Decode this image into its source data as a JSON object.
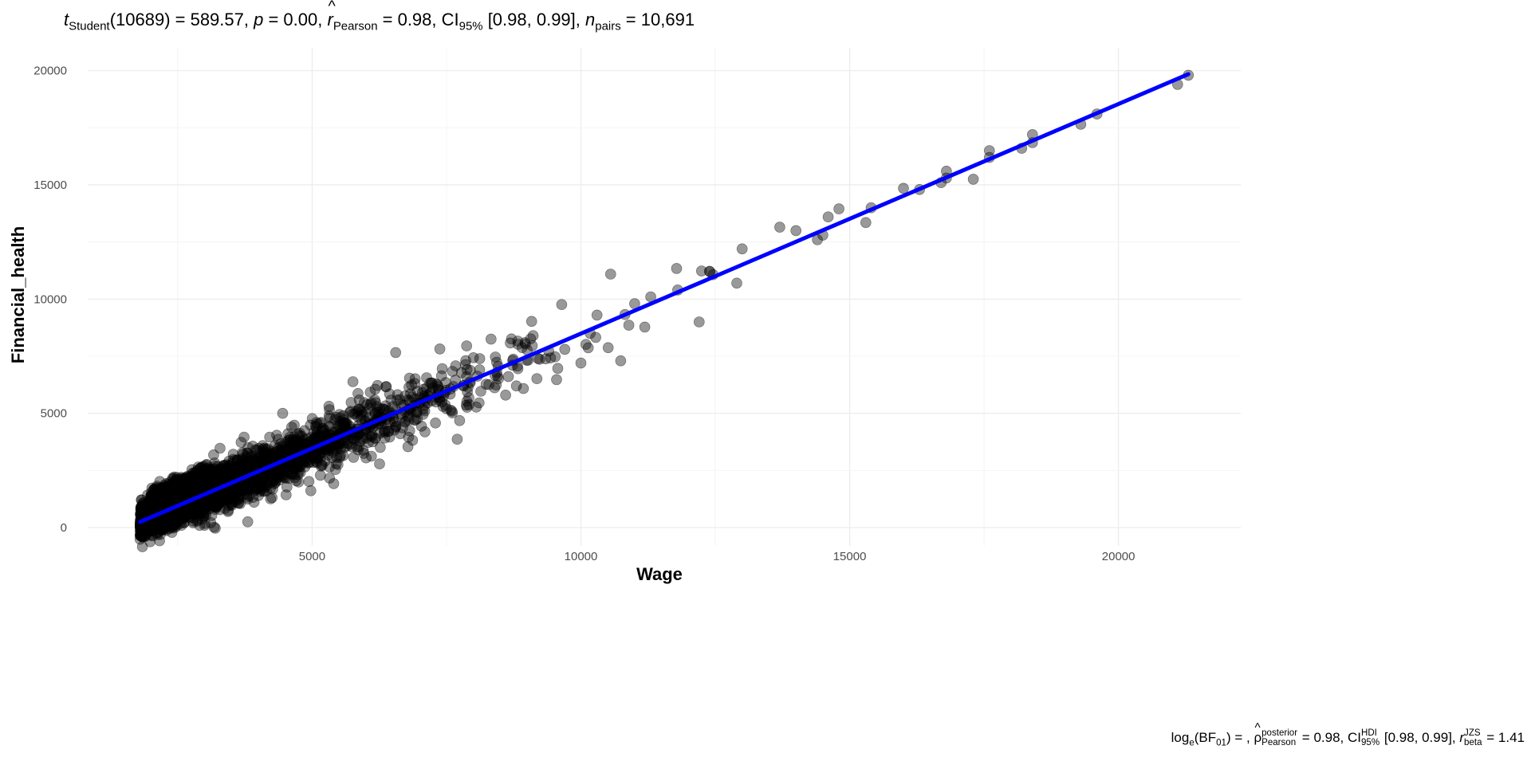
{
  "title": {
    "t": "t",
    "t_sub": "Student",
    "df": "(10689) = 589.57, ",
    "p": "p",
    "p_val": " = 0.00, ",
    "r": "r",
    "r_sub": "Pearson",
    "r_val": " = 0.98, CI",
    "ci_sub": "95%",
    "ci_val": " [0.98, 0.99], ",
    "n": "n",
    "n_sub": "pairs",
    "n_val": " = 10,691"
  },
  "caption": {
    "log": "log",
    "log_sub": "e",
    "bf": "(BF",
    "bf_sub": "01",
    "bf_end": ") = , ",
    "rho": "ρ",
    "rho_sup": "posterior",
    "rho_sub": "Pearson",
    "rho_val": " = 0.98, CI",
    "ci_sup": "HDI",
    "ci_sub": "95%",
    "ci_val": " [0.98, 0.99], ",
    "r": "r",
    "r_sup": "JZS",
    "r_sub": "beta",
    "r_val": " = 1.41"
  },
  "chart_data": {
    "type": "scatter",
    "xlabel": "Wage",
    "ylabel": "Financial_health",
    "xlim": [
      825,
      22275
    ],
    "ylim": [
      -800,
      21000
    ],
    "x_ticks": [
      5000,
      10000,
      15000,
      20000
    ],
    "y_ticks": [
      0,
      5000,
      10000,
      15000,
      20000
    ],
    "x_tick_labels": [
      "5000",
      "10000",
      "15000",
      "20000"
    ],
    "y_tick_labels": [
      "0",
      "5000",
      "10000",
      "15000",
      "20000"
    ],
    "grid": true,
    "point_color": "#000000",
    "point_alpha": 0.4,
    "line_color": "#0000ff",
    "regression": {
      "slope": 1.005,
      "intercept": -1559,
      "x_range": [
        1800,
        21300
      ]
    },
    "cloud": {
      "n": 3500,
      "x_min": 1800,
      "x_decay": 1600,
      "x_max": 12500,
      "noise_sd": 380,
      "upper_band": {
        "x_range": [
          2000,
          3100
        ],
        "y_offset": 700,
        "n": 500
      }
    },
    "points": [
      [
        21300,
        19800
      ],
      [
        21100,
        19400
      ],
      [
        19600,
        18100
      ],
      [
        19300,
        17650
      ],
      [
        18400,
        17200
      ],
      [
        18400,
        16850
      ],
      [
        18200,
        16600
      ],
      [
        17600,
        16500
      ],
      [
        17600,
        16200
      ],
      [
        17300,
        15250
      ],
      [
        16800,
        15600
      ],
      [
        16800,
        15300
      ],
      [
        16700,
        15100
      ],
      [
        16300,
        14800
      ],
      [
        16000,
        14850
      ],
      [
        15400,
        14000
      ],
      [
        15300,
        13350
      ],
      [
        14800,
        13950
      ],
      [
        14600,
        13600
      ],
      [
        14500,
        12800
      ],
      [
        14400,
        12600
      ],
      [
        14000,
        13000
      ],
      [
        13700,
        13150
      ],
      [
        13000,
        12200
      ],
      [
        12900,
        10700
      ],
      [
        12200,
        9000
      ],
      [
        12400,
        11200
      ],
      [
        11800,
        10400
      ],
      [
        11300,
        10100
      ],
      [
        11000,
        9800
      ],
      [
        10300,
        9300
      ],
      [
        10000,
        7200
      ],
      [
        9700,
        7800
      ],
      [
        9200,
        7400
      ],
      [
        8800,
        6200
      ],
      [
        8600,
        5800
      ],
      [
        7500,
        5200
      ],
      [
        6900,
        4700
      ],
      [
        6100,
        4500
      ],
      [
        5500,
        3700
      ],
      [
        2200,
        -100
      ],
      [
        1900,
        -300
      ],
      [
        3000,
        100
      ]
    ]
  }
}
